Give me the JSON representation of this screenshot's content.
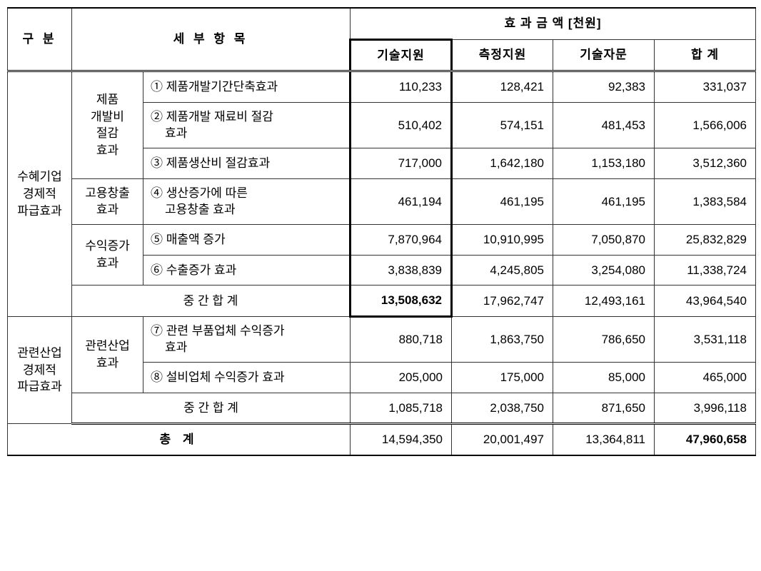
{
  "headers": {
    "category": "구 분",
    "detail": "세 부 항 목",
    "effect_group": "효 과 금 액 [천원]",
    "effect_cols": [
      "기술지원",
      "측정지원",
      "기술자문",
      "합 계"
    ]
  },
  "groups": {
    "g1": {
      "title": "수혜기업\n경제적\n파급효과"
    },
    "g2": {
      "title": "관련산업\n경제적\n파급효과"
    }
  },
  "subgroups": {
    "s1": "제품\n개발비\n절감\n효과",
    "s2": "고용창출\n효과",
    "s3": "수익증가\n효과",
    "s4": "관련산업\n효과"
  },
  "rows": {
    "r1": {
      "label": "① 제품개발기간단축효과",
      "v": [
        "110,233",
        "128,421",
        "92,383",
        "331,037"
      ]
    },
    "r2": {
      "label": "② 제품개발 재료비 절감\n효과",
      "v": [
        "510,402",
        "574,151",
        "481,453",
        "1,566,006"
      ]
    },
    "r3": {
      "label": "③ 제품생산비 절감효과",
      "v": [
        "717,000",
        "1,642,180",
        "1,153,180",
        "3,512,360"
      ]
    },
    "r4": {
      "label": "④ 생산증가에 따른\n고용창출 효과",
      "v": [
        "461,194",
        "461,195",
        "461,195",
        "1,383,584"
      ]
    },
    "r5": {
      "label": "⑤ 매출액 증가",
      "v": [
        "7,870,964",
        "10,910,995",
        "7,050,870",
        "25,832,829"
      ]
    },
    "r6": {
      "label": "⑥ 수출증가 효과",
      "v": [
        "3,838,839",
        "4,245,805",
        "3,254,080",
        "11,338,724"
      ]
    },
    "sub1": {
      "label": "중 간 합 계",
      "v": [
        "13,508,632",
        "17,962,747",
        "12,493,161",
        "43,964,540"
      ]
    },
    "r7": {
      "label": "⑦ 관련 부품업체 수익증가\n효과",
      "v": [
        "880,718",
        "1,863,750",
        "786,650",
        "3,531,118"
      ]
    },
    "r8": {
      "label": "⑧ 설비업체 수익증가 효과",
      "v": [
        "205,000",
        "175,000",
        "85,000",
        "465,000"
      ]
    },
    "sub2": {
      "label": "중 간 합 계",
      "v": [
        "1,085,718",
        "2,038,750",
        "871,650",
        "3,996,118"
      ]
    },
    "total": {
      "label": "총      계",
      "v": [
        "14,594,350",
        "20,001,497",
        "13,364,811",
        "47,960,658"
      ]
    }
  }
}
